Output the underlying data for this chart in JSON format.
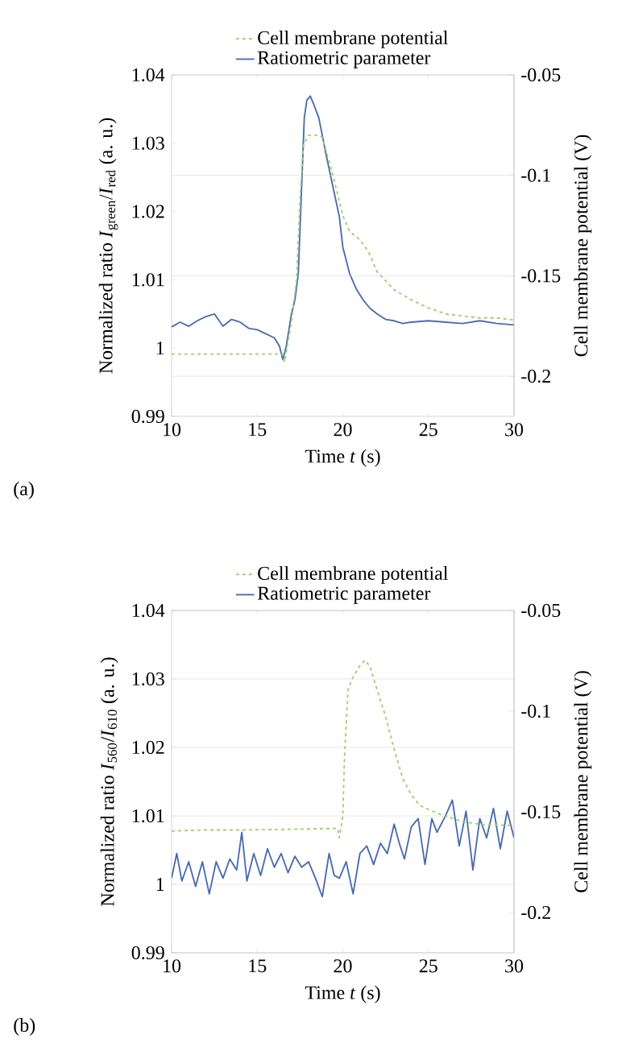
{
  "chart_data": [
    {
      "type": "line",
      "xlabel": "Time *t* (s)",
      "ylabel": "Normalized ratio *I*$_{green}$/*I*$_{red}$ (a. u.)",
      "y2label": "Cell membrane potential (V)",
      "annotations": [
        "(a)"
      ],
      "xlim": [
        10,
        30
      ],
      "xticks": [
        10,
        15,
        20,
        25,
        30
      ],
      "ylim": [
        0.99,
        1.04
      ],
      "yticks": [
        0.99,
        1,
        1.01,
        1.02,
        1.03,
        1.04
      ],
      "y2lim": [
        -0.22,
        -0.05
      ],
      "y2ticks": [
        -0.2,
        -0.15,
        -0.1,
        -0.05
      ],
      "grid": "y2",
      "legend": "top",
      "series": [
        {
          "name": "Cell membrane potential",
          "color": "#9dd36b",
          "axis": "y2",
          "line_style": "dashed",
          "x": [
            10,
            12,
            14,
            16,
            16.5,
            16.6,
            17,
            17.3,
            17.5,
            17.7,
            18,
            18.5,
            18.8,
            19.2,
            19.6,
            20,
            20.4,
            21,
            21.5,
            22,
            23,
            24,
            25,
            26,
            27,
            28,
            29,
            30
          ],
          "values": [
            -0.189,
            -0.189,
            -0.189,
            -0.189,
            -0.189,
            -0.193,
            -0.173,
            -0.152,
            -0.112,
            -0.085,
            -0.08,
            -0.08,
            -0.081,
            -0.093,
            -0.106,
            -0.12,
            -0.128,
            -0.132,
            -0.138,
            -0.148,
            -0.157,
            -0.162,
            -0.166,
            -0.169,
            -0.17,
            -0.171,
            -0.171,
            -0.172
          ]
        },
        {
          "name": "Ratiometric parameter",
          "color": "#4a6cb0",
          "line_style": "solid",
          "x": [
            10,
            10.5,
            11,
            11.5,
            12,
            12.5,
            13,
            13.5,
            14,
            14.5,
            15,
            15.5,
            16,
            16.3,
            16.5,
            16.7,
            17,
            17.2,
            17.4,
            17.6,
            17.75,
            17.9,
            18.1,
            18.3,
            18.6,
            19,
            19.4,
            19.8,
            20,
            20.4,
            20.8,
            21.2,
            21.6,
            22,
            22.5,
            23,
            23.5,
            24,
            25,
            26,
            27,
            28,
            29,
            30
          ],
          "values": [
            1.0031,
            1.0038,
            1.0032,
            1.004,
            1.0046,
            1.005,
            1.0032,
            1.0042,
            1.0038,
            1.0029,
            1.0027,
            1.0021,
            1.0015,
            1.0003,
            0.9983,
            1.0003,
            1.005,
            1.007,
            1.0109,
            1.0239,
            1.0337,
            1.0363,
            1.0369,
            1.0357,
            1.0337,
            1.0286,
            1.0239,
            1.0192,
            1.0148,
            1.0109,
            1.0086,
            1.007,
            1.0058,
            1.005,
            1.0042,
            1.004,
            1.0036,
            1.0038,
            1.004,
            1.0038,
            1.0036,
            1.004,
            1.0036,
            1.0034
          ]
        }
      ]
    },
    {
      "type": "line",
      "xlabel": "Time *t* (s)",
      "ylabel": "Normalized ratio *I*$_{560}$/*I*$_{610}$ (a. u.)",
      "y2label": "Cell membrane potential (V)",
      "annotations": [
        "(b)"
      ],
      "xlim": [
        10,
        30
      ],
      "xticks": [
        10,
        15,
        20,
        25,
        30
      ],
      "ylim": [
        0.99,
        1.04
      ],
      "yticks": [
        0.99,
        1,
        1.01,
        1.02,
        1.03,
        1.04
      ],
      "y2lim": [
        -0.22,
        -0.05
      ],
      "y2ticks": [
        -0.2,
        -0.15,
        -0.1,
        -0.05
      ],
      "grid": "y",
      "legend": "top",
      "series": [
        {
          "name": "Cell membrane potential",
          "color": "#9dd36b",
          "axis": "y2",
          "line_style": "dashed",
          "x": [
            10,
            12,
            14,
            16,
            18,
            19.7,
            19.8,
            20,
            20.1,
            20.3,
            20.6,
            21,
            21.3,
            21.6,
            22,
            22.5,
            23,
            23.5,
            24,
            24.5,
            25,
            26,
            27,
            28,
            30
          ],
          "values": [
            -0.1595,
            -0.159,
            -0.159,
            -0.1588,
            -0.1585,
            -0.1582,
            -0.1628,
            -0.1522,
            -0.1228,
            -0.0894,
            -0.083,
            -0.0774,
            -0.0747,
            -0.078,
            -0.0894,
            -0.1027,
            -0.1188,
            -0.1335,
            -0.1415,
            -0.1468,
            -0.1488,
            -0.1522,
            -0.1548,
            -0.1562,
            -0.1568
          ]
        },
        {
          "name": "Ratiometric parameter",
          "color": "#4a6cb0",
          "line_style": "solid",
          "x": [
            10,
            10.3,
            10.6,
            11,
            11.4,
            11.8,
            12.2,
            12.6,
            13,
            13.4,
            13.8,
            14.1,
            14.4,
            14.8,
            15.2,
            15.6,
            16,
            16.4,
            16.8,
            17.2,
            17.6,
            18,
            18.4,
            18.8,
            19.2,
            19.5,
            19.8,
            20.2,
            20.6,
            21,
            21.4,
            21.8,
            22.2,
            22.6,
            23,
            23.3,
            23.6,
            24,
            24.4,
            24.8,
            25.2,
            25.5,
            26,
            26.4,
            26.8,
            27.2,
            27.6,
            28,
            28.4,
            28.8,
            29.2,
            29.6,
            30
          ],
          "values": [
            1.0009,
            1.0045,
            1.0005,
            1.0033,
            0.9997,
            1.0033,
            0.9986,
            1.0033,
            1.0009,
            1.0037,
            1.0021,
            1.0076,
            1.0005,
            1.0045,
            1.0013,
            1.0052,
            1.0025,
            1.0045,
            1.0017,
            1.0041,
            1.0025,
            1.0033,
            1.0009,
            0.9982,
            1.0045,
            1.0013,
            1.0009,
            1.0033,
            0.9986,
            1.0045,
            1.0056,
            1.0029,
            1.006,
            1.0045,
            1.0088,
            1.006,
            1.0037,
            1.0084,
            1.0096,
            1.0029,
            1.0096,
            1.0076,
            1.01,
            1.0123,
            1.0056,
            1.0107,
            1.0021,
            1.0096,
            1.0068,
            1.0111,
            1.0052,
            1.0107,
            1.0068
          ]
        }
      ]
    }
  ]
}
